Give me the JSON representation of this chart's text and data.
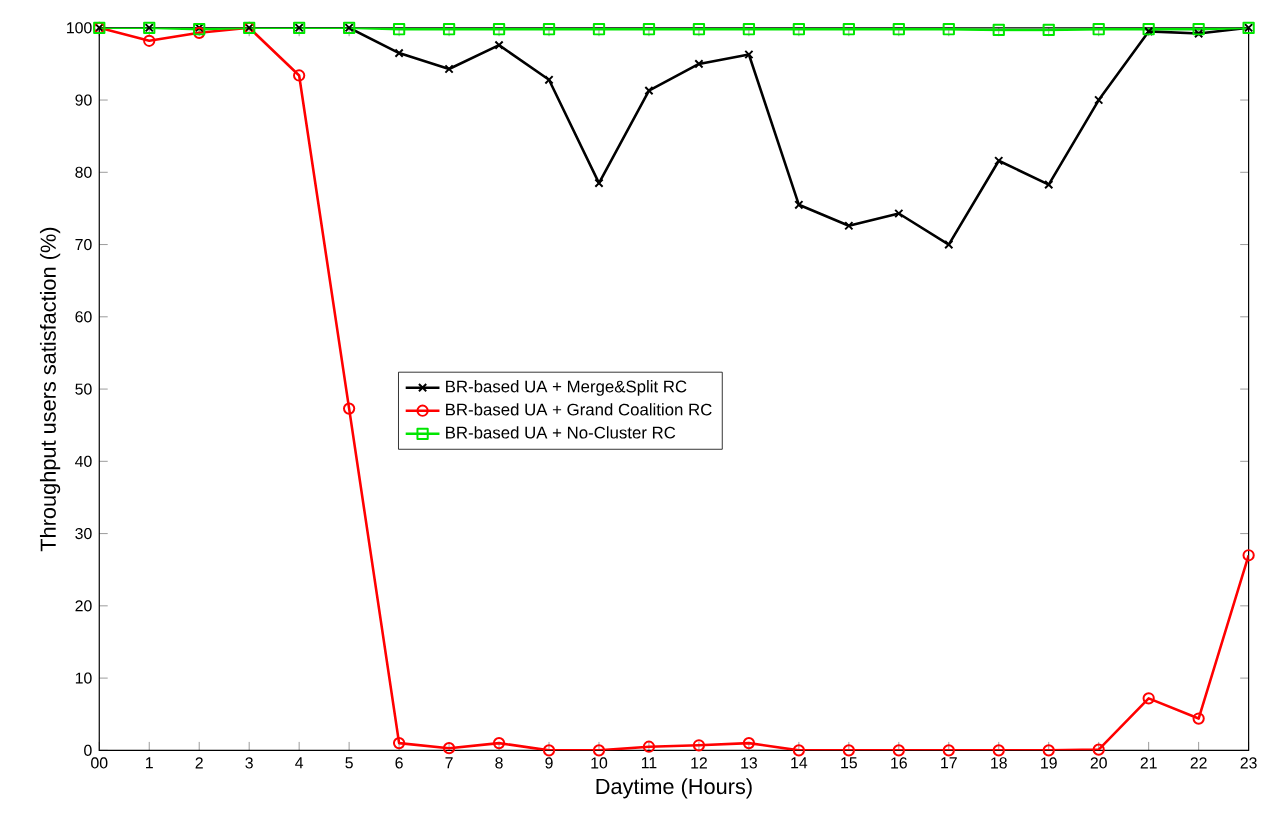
{
  "chart_data": {
    "type": "line",
    "xlabel": "Daytime (Hours)",
    "ylabel": "Throughput users satisfaction (%)",
    "x": [
      0,
      1,
      2,
      3,
      4,
      5,
      6,
      7,
      8,
      9,
      10,
      11,
      12,
      13,
      14,
      15,
      16,
      17,
      18,
      19,
      20,
      21,
      22,
      23
    ],
    "series": [
      {
        "name": "BR-based UA + Merge&Split RC",
        "color": "#000000",
        "marker": "cross",
        "values": [
          100,
          100,
          100,
          100,
          100,
          100,
          96.5,
          94.3,
          97.6,
          92.8,
          78.5,
          91.3,
          95,
          96.3,
          75.5,
          72.6,
          74.3,
          70,
          81.6,
          78.3,
          90,
          99.5,
          99.2,
          100
        ]
      },
      {
        "name": "BR-based UA + Grand Coalition RC",
        "color": "#ff0000",
        "marker": "circle",
        "values": [
          100,
          98.2,
          99.3,
          100,
          93.4,
          47.3,
          1,
          0.3,
          1,
          0,
          0,
          0.5,
          0.7,
          1,
          0,
          0,
          0,
          0,
          0,
          0,
          0.1,
          7.2,
          4.4,
          27
        ]
      },
      {
        "name": "BR-based UA + No-Cluster RC",
        "color": "#00e600",
        "marker": "square",
        "values": [
          100,
          100,
          99.8,
          100,
          100,
          100,
          99.8,
          99.8,
          99.8,
          99.8,
          99.8,
          99.8,
          99.8,
          99.8,
          99.8,
          99.8,
          99.8,
          99.8,
          99.7,
          99.7,
          99.8,
          99.8,
          99.8,
          100
        ]
      }
    ],
    "xlim": [
      0,
      23
    ],
    "ylim": [
      0,
      100
    ],
    "xticks": [
      {
        "value": 0,
        "label": "00"
      },
      1,
      2,
      3,
      4,
      5,
      6,
      7,
      8,
      9,
      10,
      11,
      12,
      13,
      14,
      15,
      16,
      17,
      18,
      19,
      20,
      21,
      22,
      23
    ],
    "yticks": [
      0,
      10,
      20,
      30,
      40,
      50,
      60,
      70,
      80,
      90,
      100
    ],
    "grid": false,
    "legend": "center",
    "line_style": "solid"
  }
}
